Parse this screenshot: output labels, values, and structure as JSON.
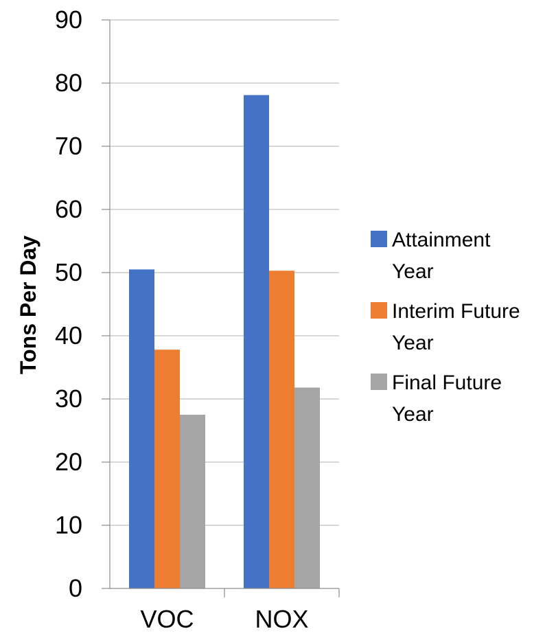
{
  "chart_data": {
    "type": "bar",
    "categories": [
      "VOC",
      "NOX"
    ],
    "series": [
      {
        "name": "Attainment Year",
        "legend_lines": [
          "Attainment",
          "Year"
        ],
        "values": [
          50.5,
          78.1
        ],
        "color": "#4472C4"
      },
      {
        "name": "Interim Future Year",
        "legend_lines": [
          "Interim Future",
          "Year"
        ],
        "values": [
          37.8,
          50.3
        ],
        "color": "#ED7D31"
      },
      {
        "name": "Final Future Year",
        "legend_lines": [
          "Final Future",
          "Year"
        ],
        "values": [
          27.5,
          31.8
        ],
        "color": "#A5A5A5"
      }
    ],
    "title": "",
    "xlabel": "",
    "ylabel": "Tons Per Day",
    "ylim": [
      0,
      90
    ],
    "yticks": [
      0,
      10,
      20,
      30,
      40,
      50,
      60,
      70,
      80,
      90
    ],
    "grid": true,
    "legend_position": "right"
  }
}
